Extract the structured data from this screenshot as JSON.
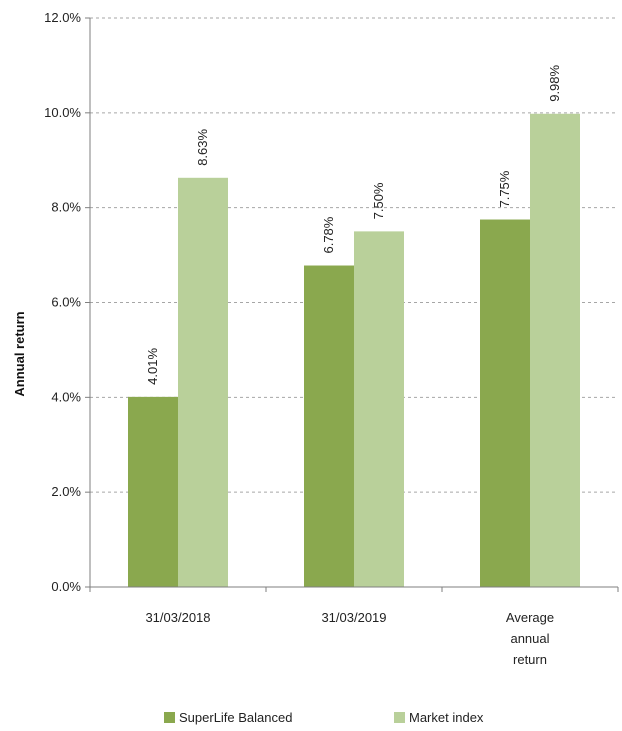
{
  "chart_data": {
    "type": "bar",
    "categories": [
      "31/03/2018",
      "31/03/2019",
      "Average annual return"
    ],
    "category_lines": [
      [
        "31/03/2018"
      ],
      [
        "31/03/2019"
      ],
      [
        "Average",
        "annual",
        "return"
      ]
    ],
    "series": [
      {
        "name": "SuperLife Balanced",
        "values": [
          4.01,
          6.78,
          7.75
        ],
        "labels": [
          "4.01%",
          "6.78%",
          "7.75%"
        ],
        "color": "#8aa84e"
      },
      {
        "name": "Market index",
        "values": [
          8.63,
          7.5,
          9.98
        ],
        "labels": [
          "8.63%",
          "7.50%",
          "9.98%"
        ],
        "color": "#b9d09a"
      }
    ],
    "ylabel": "Annual return",
    "ylim": [
      0,
      12
    ],
    "yticks": [
      "0.0%",
      "2.0%",
      "4.0%",
      "6.0%",
      "8.0%",
      "10.0%",
      "12.0%"
    ],
    "grid": true,
    "legend_position": "bottom"
  }
}
